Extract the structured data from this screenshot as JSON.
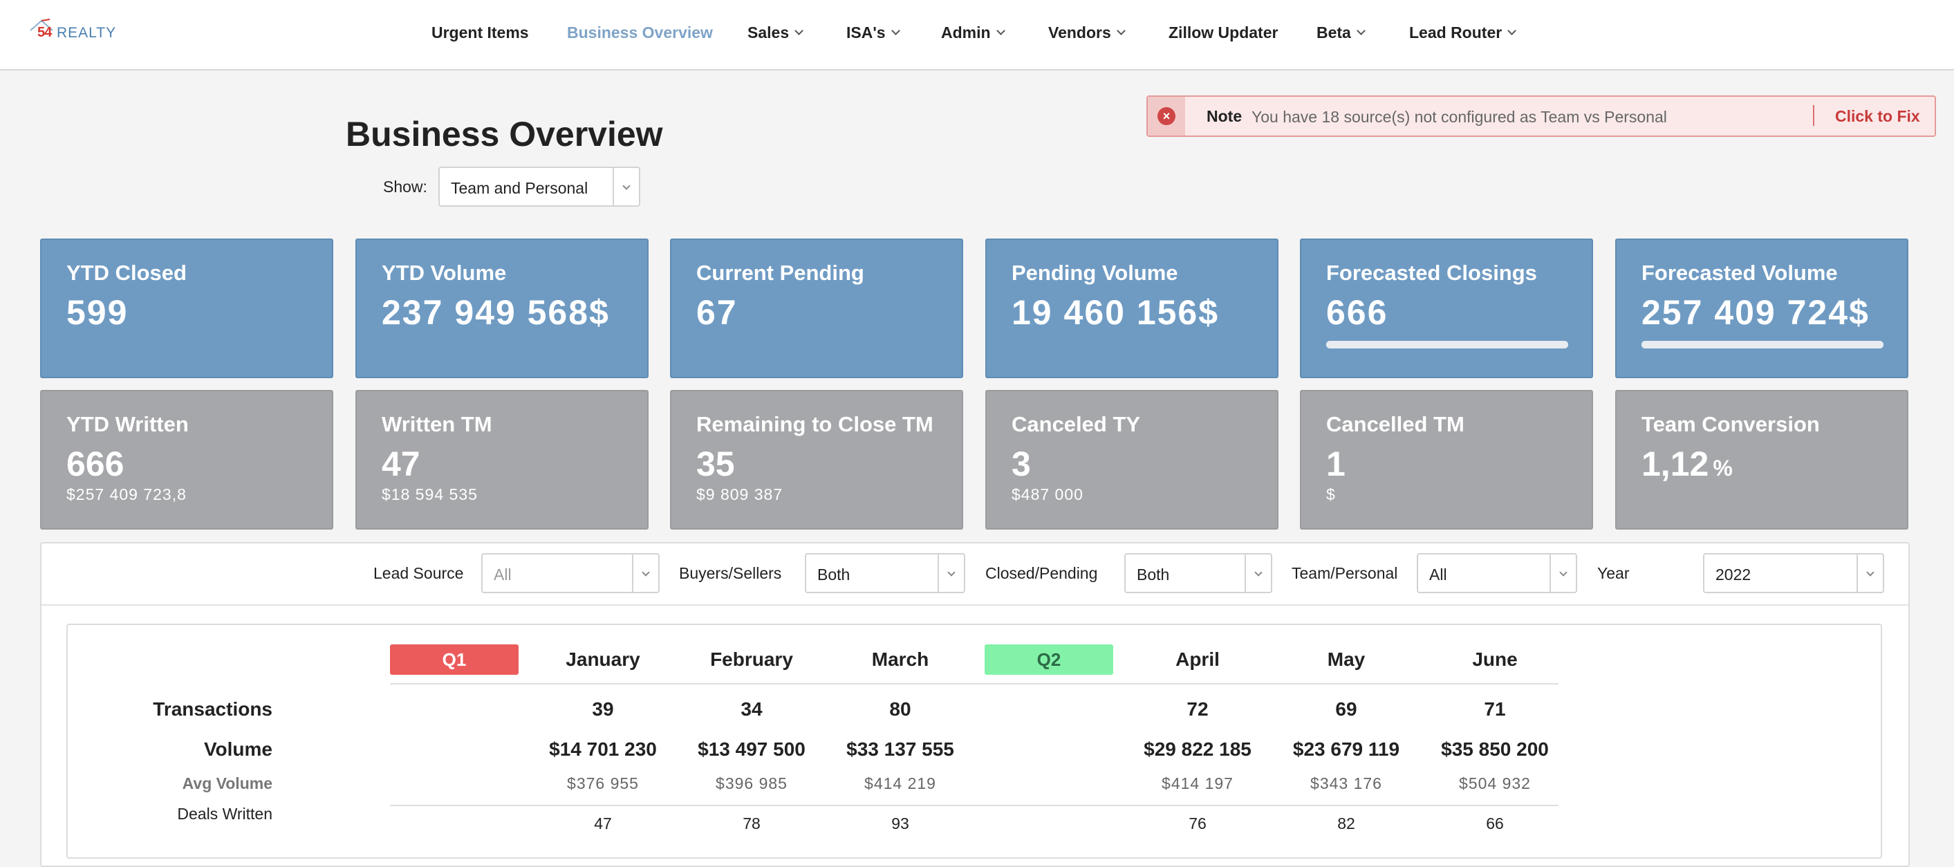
{
  "nav": {
    "logo_num": "54",
    "logo_text": "REALTY",
    "items": [
      {
        "label": "Urgent Items",
        "dropdown": false,
        "active": false
      },
      {
        "label": "Business Overview",
        "dropdown": false,
        "active": true
      },
      {
        "label": "Sales",
        "dropdown": true,
        "active": false
      },
      {
        "label": "ISA's",
        "dropdown": true,
        "active": false
      },
      {
        "label": "Admin",
        "dropdown": true,
        "active": false
      },
      {
        "label": "Vendors",
        "dropdown": true,
        "active": false
      },
      {
        "label": "Zillow Updater",
        "dropdown": false,
        "active": false
      },
      {
        "label": "Beta",
        "dropdown": true,
        "active": false
      },
      {
        "label": "Lead Router",
        "dropdown": true,
        "active": false
      }
    ]
  },
  "page": {
    "title": "Business Overview",
    "show_label": "Show:",
    "show_value": "Team and Personal"
  },
  "note": {
    "label": "Note",
    "message": "You have 18 source(s) not configured as Team vs Personal",
    "action": "Click to Fix",
    "icon": "close-circle-icon"
  },
  "cards_top": [
    {
      "title": "YTD Closed",
      "value": "599"
    },
    {
      "title": "YTD Volume",
      "value": "237 949 568$"
    },
    {
      "title": "Current Pending",
      "value": "67"
    },
    {
      "title": "Pending Volume",
      "value": "19 460 156$"
    },
    {
      "title": "Forecasted Closings",
      "value": "666",
      "progress": 1.0
    },
    {
      "title": "Forecasted Volume",
      "value": "257 409 724$",
      "progress": 1.0
    }
  ],
  "cards_bottom": [
    {
      "title": "YTD Written",
      "value": "666",
      "sub": "$257 409 723,8"
    },
    {
      "title": "Written TM",
      "value": "47",
      "sub": "$18 594 535"
    },
    {
      "title": "Remaining to Close TM",
      "value": "35",
      "sub": "$9 809 387"
    },
    {
      "title": "Canceled TY",
      "value": "3",
      "sub": "$487 000"
    },
    {
      "title": "Cancelled TM",
      "value": "1",
      "sub": "$"
    },
    {
      "title": "Team Conversion",
      "value": "1,12",
      "unit": "%"
    }
  ],
  "filters": {
    "lead_source": {
      "label": "Lead Source",
      "value": "All"
    },
    "buyers_sellers": {
      "label": "Buyers/Sellers",
      "value": "Both"
    },
    "closed_pending": {
      "label": "Closed/Pending",
      "value": "Both"
    },
    "team_personal": {
      "label": "Team/Personal",
      "value": "All"
    },
    "year": {
      "label": "Year",
      "value": "2022"
    }
  },
  "table": {
    "quarters": [
      "Q1",
      "Q2"
    ],
    "row_labels": {
      "transactions": "Transactions",
      "volume": "Volume",
      "avg_volume": "Avg Volume",
      "deals_written": "Deals Written"
    },
    "months": [
      {
        "name": "January",
        "transactions": "39",
        "volume": "$14 701 230",
        "avg_volume": "$376 955",
        "deals_written": "47"
      },
      {
        "name": "February",
        "transactions": "34",
        "volume": "$13 497 500",
        "avg_volume": "$396 985",
        "deals_written": "78"
      },
      {
        "name": "March",
        "transactions": "80",
        "volume": "$33 137 555",
        "avg_volume": "$414 219",
        "deals_written": "93"
      },
      {
        "name": "April",
        "transactions": "72",
        "volume": "$29 822 185",
        "avg_volume": "$414 197",
        "deals_written": "76"
      },
      {
        "name": "May",
        "transactions": "69",
        "volume": "$23 679 119",
        "avg_volume": "$343 176",
        "deals_written": "82"
      },
      {
        "name": "June",
        "transactions": "71",
        "volume": "$35 850 200",
        "avg_volume": "$504 932",
        "deals_written": "66"
      }
    ]
  }
}
